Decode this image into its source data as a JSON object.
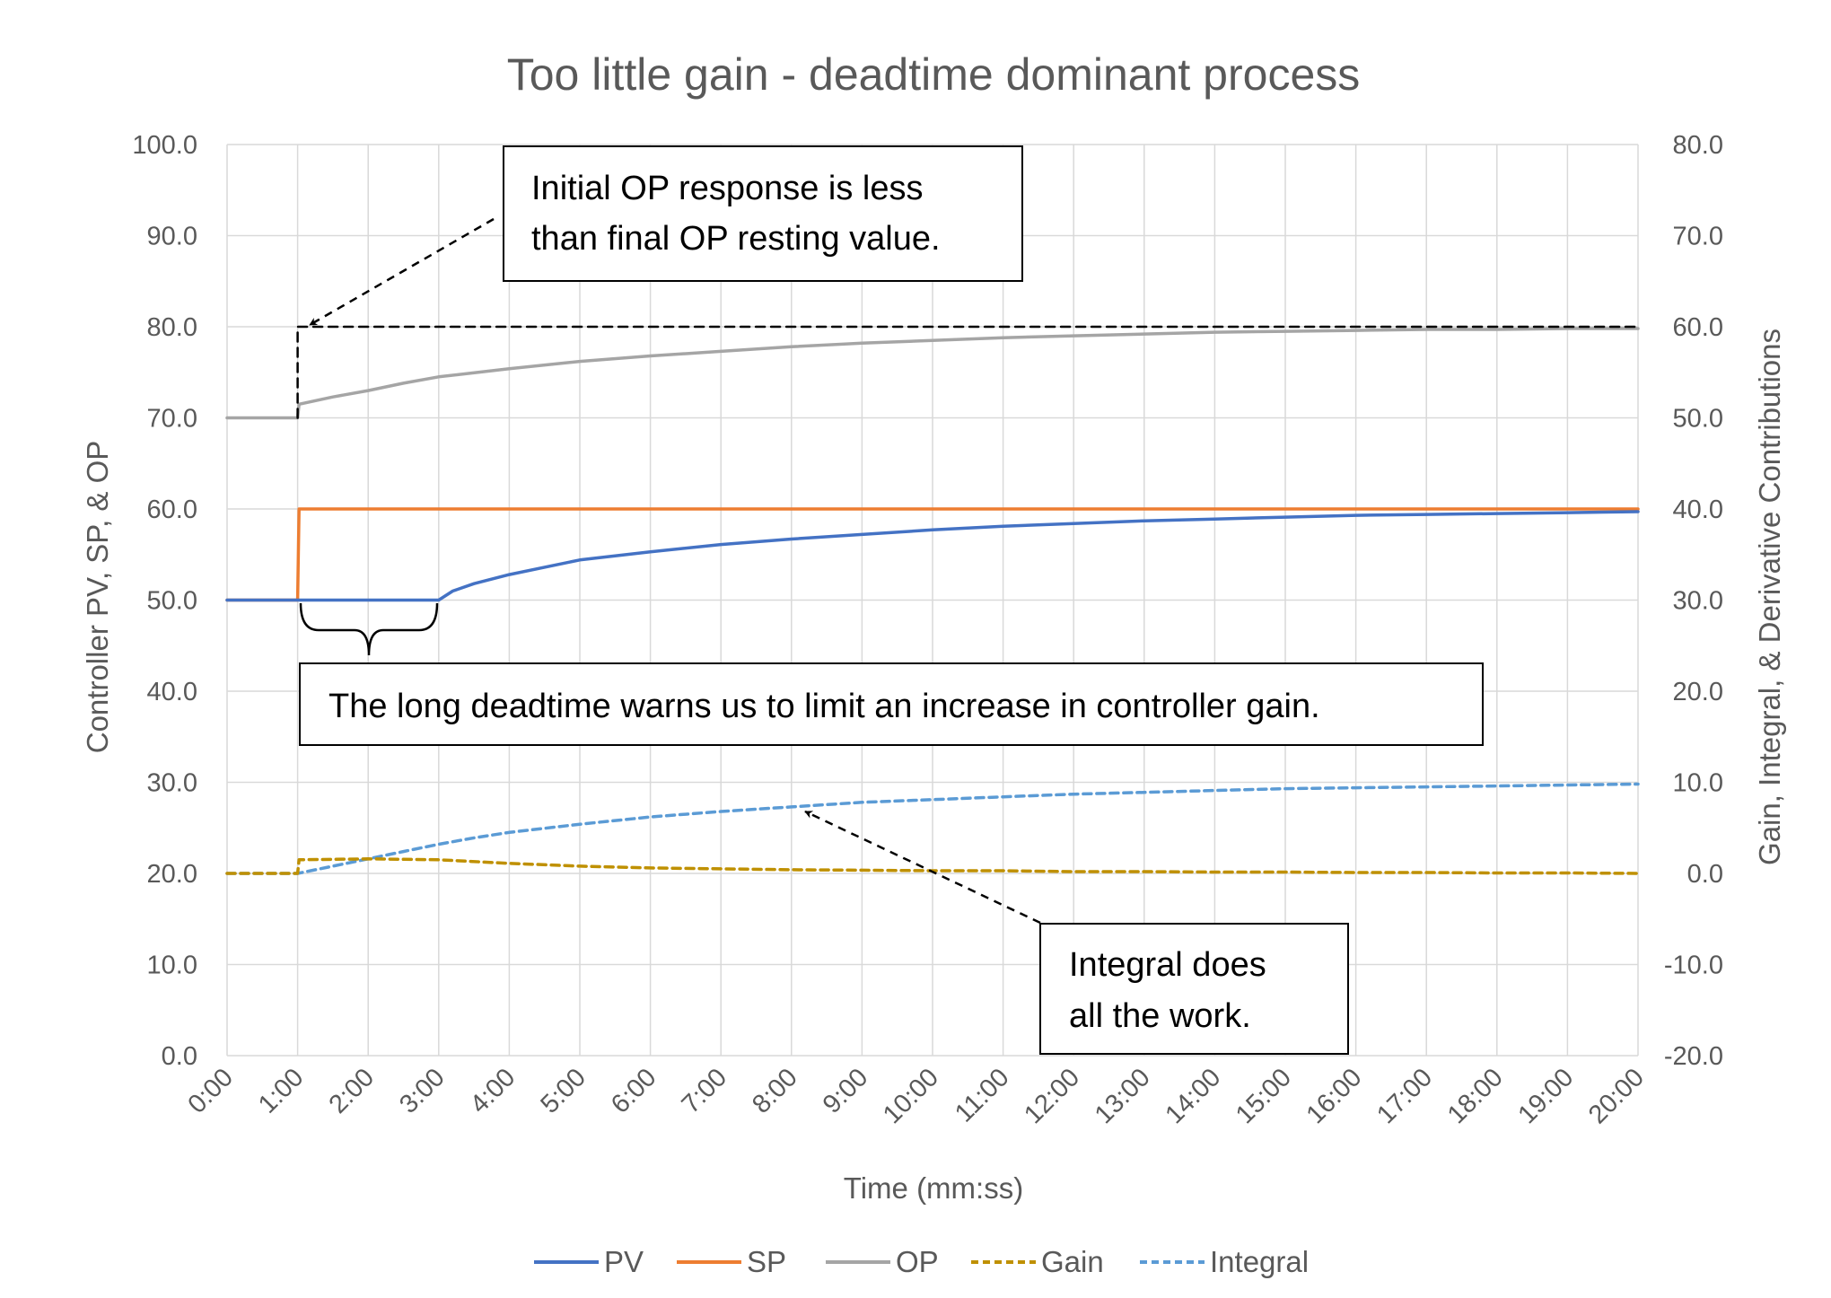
{
  "chart_data": {
    "type": "line",
    "title": "Too little gain - deadtime dominant process",
    "xlabel": "Time (mm:ss)",
    "ylabel_left": "Controller PV, SP, & OP",
    "ylabel_right": "Gain, Integral, & Derivative Contributions",
    "x_ticks": [
      "0:00",
      "1:00",
      "2:00",
      "3:00",
      "4:00",
      "5:00",
      "6:00",
      "7:00",
      "8:00",
      "9:00",
      "10:00",
      "11:00",
      "12:00",
      "13:00",
      "14:00",
      "15:00",
      "16:00",
      "17:00",
      "18:00",
      "19:00",
      "20:00"
    ],
    "xlim_minutes": [
      0,
      20
    ],
    "ylim_left": [
      0,
      100
    ],
    "ylim_right": [
      -20,
      80
    ],
    "y_ticks_left": [
      "0.0",
      "10.0",
      "20.0",
      "30.0",
      "40.0",
      "50.0",
      "60.0",
      "70.0",
      "80.0",
      "90.0",
      "100.0"
    ],
    "y_ticks_right": [
      "-20.0",
      "-10.0",
      "0.0",
      "10.0",
      "20.0",
      "30.0",
      "40.0",
      "50.0",
      "60.0",
      "70.0",
      "80.0"
    ],
    "grid": true,
    "legend_position": "bottom",
    "series": [
      {
        "name": "PV",
        "axis": "left",
        "color": "#4472c4",
        "dash": "solid",
        "x": [
          0,
          1,
          1.5,
          2,
          2.5,
          3,
          3.2,
          3.5,
          4,
          5,
          6,
          7,
          8,
          9,
          10,
          11,
          12,
          13,
          14,
          15,
          16,
          17,
          18,
          19,
          20
        ],
        "y": [
          50,
          50,
          50,
          50,
          50,
          50,
          51,
          51.8,
          52.8,
          54.4,
          55.3,
          56.1,
          56.7,
          57.2,
          57.7,
          58.1,
          58.4,
          58.7,
          58.9,
          59.1,
          59.3,
          59.4,
          59.5,
          59.6,
          59.7
        ]
      },
      {
        "name": "SP",
        "axis": "left",
        "color": "#ed7d31",
        "dash": "solid",
        "x": [
          0,
          1,
          1.02,
          20
        ],
        "y": [
          50,
          50,
          60,
          60
        ]
      },
      {
        "name": "OP",
        "axis": "left",
        "color": "#a5a5a5",
        "dash": "solid",
        "x": [
          0,
          1,
          1.02,
          1.5,
          2,
          2.5,
          3,
          4,
          5,
          6,
          7,
          8,
          9,
          10,
          11,
          12,
          13,
          14,
          15,
          16,
          17,
          18,
          19,
          20
        ],
        "y": [
          70,
          70,
          71.5,
          72.3,
          73,
          73.8,
          74.5,
          75.4,
          76.2,
          76.8,
          77.3,
          77.8,
          78.2,
          78.5,
          78.8,
          79,
          79.2,
          79.4,
          79.5,
          79.6,
          79.7,
          79.7,
          79.8,
          79.8
        ]
      },
      {
        "name": "Gain",
        "axis": "right",
        "color": "#bf9000",
        "dash": "dashed",
        "x": [
          0,
          1,
          1.02,
          2,
          3,
          4,
          5,
          6,
          7,
          8,
          9,
          10,
          11,
          12,
          13,
          14,
          15,
          16,
          17,
          18,
          19,
          20
        ],
        "y": [
          0,
          0,
          1.5,
          1.6,
          1.5,
          1.1,
          0.8,
          0.6,
          0.5,
          0.4,
          0.35,
          0.3,
          0.3,
          0.2,
          0.2,
          0.15,
          0.15,
          0.1,
          0.1,
          0.05,
          0.05,
          0
        ]
      },
      {
        "name": "Integral",
        "axis": "right",
        "color": "#5b9bd5",
        "dash": "dashed",
        "x": [
          0,
          1,
          1.5,
          2,
          2.5,
          3,
          3.5,
          4,
          5,
          6,
          7,
          8,
          9,
          10,
          11,
          12,
          13,
          14,
          15,
          16,
          17,
          18,
          19,
          20
        ],
        "y": [
          0,
          0,
          0.8,
          1.6,
          2.4,
          3.2,
          3.9,
          4.5,
          5.4,
          6.2,
          6.8,
          7.3,
          7.8,
          8.1,
          8.4,
          8.7,
          8.9,
          9.1,
          9.3,
          9.4,
          9.5,
          9.6,
          9.7,
          9.8
        ]
      },
      {
        "name": "",
        "axis": "left",
        "color": "#000000",
        "dash": "dashed",
        "x": [
          1,
          1,
          20
        ],
        "y": [
          70,
          80,
          80
        ]
      }
    ],
    "annotations": [
      {
        "lines": [
          "Initial OP response is less",
          "than final OP resting value."
        ]
      },
      {
        "lines": [
          "The long deadtime warns us to limit an increase in controller gain."
        ]
      },
      {
        "lines": [
          "Integral does",
          "all the work."
        ]
      }
    ]
  }
}
